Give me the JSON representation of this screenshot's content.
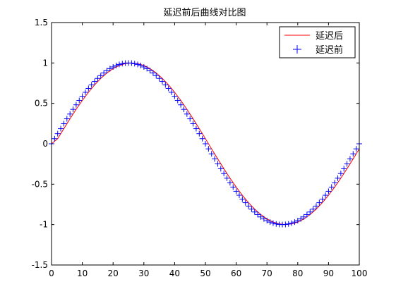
{
  "chart_data": {
    "type": "line",
    "title": "延迟前后曲线对比图",
    "xlabel": "",
    "ylabel": "",
    "xlim": [
      0,
      100
    ],
    "ylim": [
      -1.5,
      1.5
    ],
    "xticks": [
      "0",
      "10",
      "20",
      "30",
      "40",
      "50",
      "60",
      "70",
      "80",
      "90",
      "100"
    ],
    "yticks": [
      "1.5",
      "1",
      "0.5",
      "0",
      "-0.5",
      "-1",
      "-1.5"
    ],
    "grid": false,
    "legend_position": "top-right",
    "series": [
      {
        "name": "延迟后",
        "style": "line",
        "color": "#ff0000",
        "x": [
          0,
          2,
          4,
          6,
          8,
          10,
          12,
          14,
          16,
          18,
          20,
          22,
          24,
          26,
          28,
          30,
          32,
          34,
          36,
          38,
          40,
          42,
          44,
          46,
          48,
          50,
          52,
          54,
          56,
          58,
          60,
          62,
          64,
          66,
          68,
          70,
          72,
          74,
          76,
          78,
          80,
          82,
          84,
          86,
          88,
          90,
          92,
          94,
          96,
          98,
          100
        ],
        "y": [
          0.0,
          0.063,
          0.187,
          0.309,
          0.426,
          0.536,
          0.637,
          0.729,
          0.809,
          0.876,
          0.93,
          0.969,
          0.992,
          1.0,
          0.992,
          0.969,
          0.93,
          0.876,
          0.809,
          0.729,
          0.637,
          0.536,
          0.426,
          0.309,
          0.187,
          0.063,
          -0.063,
          -0.187,
          -0.309,
          -0.426,
          -0.536,
          -0.637,
          -0.729,
          -0.809,
          -0.876,
          -0.93,
          -0.969,
          -0.992,
          -1.0,
          -0.992,
          -0.969,
          -0.93,
          -0.876,
          -0.809,
          -0.729,
          -0.637,
          -0.536,
          -0.426,
          -0.309,
          -0.187,
          -0.063
        ]
      },
      {
        "name": "延迟前",
        "style": "marker-plus",
        "color": "#0000ff",
        "x": [
          0,
          1,
          2,
          3,
          4,
          5,
          6,
          7,
          8,
          9,
          10,
          11,
          12,
          13,
          14,
          15,
          16,
          17,
          18,
          19,
          20,
          21,
          22,
          23,
          24,
          25,
          26,
          27,
          28,
          29,
          30,
          31,
          32,
          33,
          34,
          35,
          36,
          37,
          38,
          39,
          40,
          41,
          42,
          43,
          44,
          45,
          46,
          47,
          48,
          49,
          50,
          51,
          52,
          53,
          54,
          55,
          56,
          57,
          58,
          59,
          60,
          61,
          62,
          63,
          64,
          65,
          66,
          67,
          68,
          69,
          70,
          71,
          72,
          73,
          74,
          75,
          76,
          77,
          78,
          79,
          80,
          81,
          82,
          83,
          84,
          85,
          86,
          87,
          88,
          89,
          90,
          91,
          92,
          93,
          94,
          95,
          96,
          97,
          98,
          99,
          100
        ],
        "y": [
          0.0,
          0.063,
          0.125,
          0.187,
          0.249,
          0.309,
          0.368,
          0.426,
          0.482,
          0.536,
          0.588,
          0.637,
          0.685,
          0.729,
          0.771,
          0.809,
          0.844,
          0.876,
          0.905,
          0.93,
          0.951,
          0.969,
          0.982,
          0.992,
          0.998,
          1.0,
          0.998,
          0.992,
          0.982,
          0.969,
          0.951,
          0.93,
          0.905,
          0.876,
          0.844,
          0.809,
          0.771,
          0.729,
          0.685,
          0.637,
          0.588,
          0.536,
          0.482,
          0.426,
          0.368,
          0.309,
          0.249,
          0.187,
          0.125,
          0.063,
          0.0,
          -0.063,
          -0.125,
          -0.187,
          -0.249,
          -0.309,
          -0.368,
          -0.426,
          -0.482,
          -0.536,
          -0.588,
          -0.637,
          -0.685,
          -0.729,
          -0.771,
          -0.809,
          -0.844,
          -0.876,
          -0.905,
          -0.93,
          -0.951,
          -0.969,
          -0.982,
          -0.992,
          -0.998,
          -1.0,
          -0.998,
          -0.992,
          -0.982,
          -0.969,
          -0.951,
          -0.93,
          -0.905,
          -0.876,
          -0.844,
          -0.809,
          -0.771,
          -0.729,
          -0.685,
          -0.637,
          -0.588,
          -0.536,
          -0.482,
          -0.426,
          -0.368,
          -0.309,
          -0.249,
          -0.187,
          -0.125,
          -0.063,
          0.0
        ]
      }
    ]
  }
}
